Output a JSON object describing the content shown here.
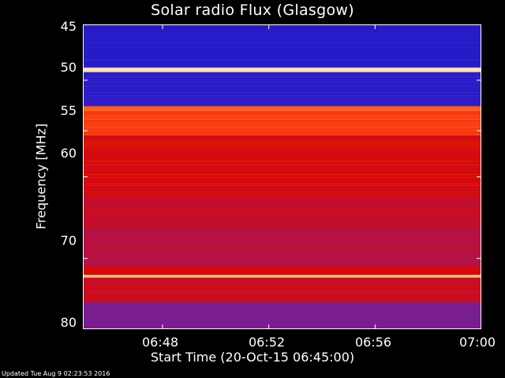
{
  "chart_data": {
    "type": "heatmap",
    "title": "Solar radio Flux (Glasgow)",
    "xlabel": "Start Time (20-Oct-15 06:45:00)",
    "ylabel": "Frequency [MHz]",
    "x_ticks": [
      "06:48",
      "06:52",
      "06:56",
      "07:00"
    ],
    "y_ticks": [
      "45",
      "50",
      "55",
      "60",
      "70",
      "80"
    ],
    "xlim": [
      "06:45:00",
      "07:00:00"
    ],
    "ylim": [
      45,
      80
    ],
    "y_scale": "log",
    "colormap": "blue-red-white (low to high flux)",
    "bands": [
      {
        "freq_min": 45,
        "freq_max": 48.8,
        "level": 0.08
      },
      {
        "freq_min": 48.8,
        "freq_max": 49.2,
        "level": 0.95
      },
      {
        "freq_min": 49.2,
        "freq_max": 52.5,
        "level": 0.1
      },
      {
        "freq_min": 52.5,
        "freq_max": 53.0,
        "level": 0.75
      },
      {
        "freq_min": 53.0,
        "freq_max": 55.5,
        "level": 0.68
      },
      {
        "freq_min": 55.5,
        "freq_max": 62,
        "level": 0.55
      },
      {
        "freq_min": 62,
        "freq_max": 66,
        "level": 0.5
      },
      {
        "freq_min": 66,
        "freq_max": 71,
        "level": 0.45
      },
      {
        "freq_min": 71,
        "freq_max": 72.2,
        "level": 0.55
      },
      {
        "freq_min": 72.2,
        "freq_max": 72.6,
        "level": 0.9
      },
      {
        "freq_min": 72.6,
        "freq_max": 76,
        "level": 0.5
      },
      {
        "freq_min": 76,
        "freq_max": 80,
        "level": 0.3
      }
    ]
  },
  "footer": "Updated Tue Aug  9 02:23:53 2016"
}
